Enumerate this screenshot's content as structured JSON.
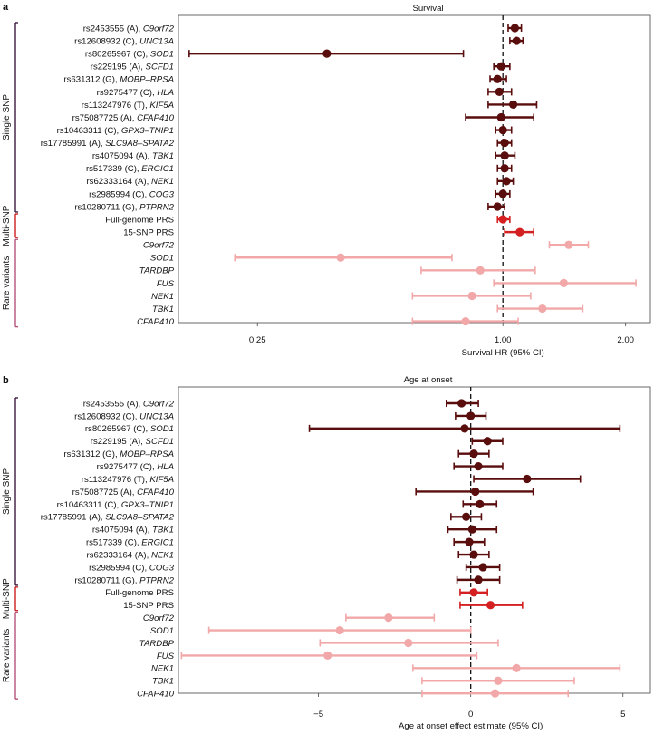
{
  "colors": {
    "single": "#5a0d0d",
    "multi": "#d42020",
    "rare": "#f2a8a8",
    "bracket_single": "#3d1a3e",
    "bracket_multi": "#cc1f1f",
    "bracket_rare": "#b5527a"
  },
  "groups": [
    {
      "key": "single",
      "label": "Single SNP"
    },
    {
      "key": "multi",
      "label": "Multi-SNP"
    },
    {
      "key": "rare",
      "label": "Rare variants"
    }
  ],
  "chart_data": [
    {
      "panel": "a",
      "type": "forest",
      "title": "Survival",
      "xlabel": "Survival HR (95% CI)",
      "scale": "log",
      "xlim": [
        0.16,
        2.3
      ],
      "ticks": [
        {
          "v": 0.25,
          "label": "0.25"
        },
        {
          "v": 1.0,
          "label": "1.00"
        },
        {
          "v": 2.0,
          "label": "2.00"
        }
      ],
      "ref": 1.0,
      "rows": [
        {
          "pre": "rs2453555 (A), ",
          "it": "C9orf72",
          "group": "single",
          "est": 1.07,
          "lo": 1.03,
          "hi": 1.11
        },
        {
          "pre": "rs12608932 (C), ",
          "it": "UNC13A",
          "group": "single",
          "est": 1.08,
          "lo": 1.04,
          "hi": 1.12
        },
        {
          "pre": "rs80265967 (C), ",
          "it": "SOD1",
          "group": "single",
          "est": 0.37,
          "lo": 0.17,
          "hi": 0.8
        },
        {
          "pre": "rs229195 (A), ",
          "it": "SCFD1",
          "group": "single",
          "est": 0.99,
          "lo": 0.95,
          "hi": 1.04
        },
        {
          "pre": "rs631312 (G), ",
          "it": "MOBP–RPSA",
          "group": "single",
          "est": 0.97,
          "lo": 0.93,
          "hi": 1.02
        },
        {
          "pre": "rs9275477 (C), ",
          "it": "HLA",
          "group": "single",
          "est": 0.98,
          "lo": 0.92,
          "hi": 1.05
        },
        {
          "pre": "rs113247976 (T), ",
          "it": "KIF5A",
          "group": "single",
          "est": 1.06,
          "lo": 0.92,
          "hi": 1.21
        },
        {
          "pre": "rs75087725 (A), ",
          "it": "CFAP410",
          "group": "single",
          "est": 0.99,
          "lo": 0.81,
          "hi": 1.19
        },
        {
          "pre": "rs10463311 (C), ",
          "it": "GPX3–TNIP1",
          "group": "single",
          "est": 1.0,
          "lo": 0.96,
          "hi": 1.05
        },
        {
          "pre": "rs17785991 (A), ",
          "it": "SLC9A8–SPATA2",
          "group": "single",
          "est": 1.01,
          "lo": 0.97,
          "hi": 1.05
        },
        {
          "pre": "rs4075094 (A), ",
          "it": "TBK1",
          "group": "single",
          "est": 1.01,
          "lo": 0.96,
          "hi": 1.07
        },
        {
          "pre": "rs517339 (C), ",
          "it": "ERGIC1",
          "group": "single",
          "est": 1.01,
          "lo": 0.97,
          "hi": 1.05
        },
        {
          "pre": "rs62333164 (A), ",
          "it": "NEK1",
          "group": "single",
          "est": 1.02,
          "lo": 0.97,
          "hi": 1.06
        },
        {
          "pre": "rs2985994 (C), ",
          "it": "COG3",
          "group": "single",
          "est": 1.0,
          "lo": 0.96,
          "hi": 1.04
        },
        {
          "pre": "rs10280711 (G), ",
          "it": "PTPRN2",
          "group": "single",
          "est": 0.97,
          "lo": 0.92,
          "hi": 1.01
        },
        {
          "pre": "Full-genome PRS",
          "it": "",
          "group": "multi",
          "est": 1.0,
          "lo": 0.97,
          "hi": 1.04
        },
        {
          "pre": "15-SNP PRS",
          "it": "",
          "group": "multi",
          "est": 1.1,
          "lo": 1.01,
          "hi": 1.19
        },
        {
          "pre": "",
          "it": "C9orf72",
          "group": "rare",
          "est": 1.45,
          "lo": 1.3,
          "hi": 1.62
        },
        {
          "pre": "",
          "it": "SOD1",
          "group": "rare",
          "est": 0.4,
          "lo": 0.22,
          "hi": 0.75
        },
        {
          "pre": "",
          "it": "TARDBP",
          "group": "rare",
          "est": 0.88,
          "lo": 0.63,
          "hi": 1.2
        },
        {
          "pre": "",
          "it": "FUS",
          "group": "rare",
          "est": 1.41,
          "lo": 0.95,
          "hi": 2.12
        },
        {
          "pre": "",
          "it": "NEK1",
          "group": "rare",
          "est": 0.84,
          "lo": 0.6,
          "hi": 1.17
        },
        {
          "pre": "",
          "it": "TBK1",
          "group": "rare",
          "est": 1.25,
          "lo": 0.97,
          "hi": 1.57
        },
        {
          "pre": "",
          "it": "CFAP410",
          "group": "rare",
          "est": 0.81,
          "lo": 0.6,
          "hi": 1.09
        }
      ]
    },
    {
      "panel": "b",
      "type": "forest",
      "title": "Age at onset",
      "xlabel": "Age at onset effect estimate (95% CI)",
      "scale": "linear",
      "xlim": [
        -9.6,
        5.9
      ],
      "ticks": [
        {
          "v": -5,
          "label": "−5"
        },
        {
          "v": 0,
          "label": "0"
        },
        {
          "v": 5,
          "label": "5"
        }
      ],
      "ref": 0,
      "rows": [
        {
          "pre": "rs2453555 (A), ",
          "it": "C9orf72",
          "group": "single",
          "est": -0.3,
          "lo": -0.8,
          "hi": 0.25
        },
        {
          "pre": "rs12608932 (C), ",
          "it": "UNC13A",
          "group": "single",
          "est": 0.0,
          "lo": -0.5,
          "hi": 0.5
        },
        {
          "pre": "rs80265967 (C), ",
          "it": "SOD1",
          "group": "single",
          "est": -0.2,
          "lo": -5.3,
          "hi": 4.9
        },
        {
          "pre": "rs229195 (A), ",
          "it": "SCFD1",
          "group": "single",
          "est": 0.55,
          "lo": 0.05,
          "hi": 1.05
        },
        {
          "pre": "rs631312 (G), ",
          "it": "MOBP–RPSA",
          "group": "single",
          "est": 0.1,
          "lo": -0.4,
          "hi": 0.6
        },
        {
          "pre": "rs9275477 (C), ",
          "it": "HLA",
          "group": "single",
          "est": 0.25,
          "lo": -0.55,
          "hi": 1.05
        },
        {
          "pre": "rs113247976 (T), ",
          "it": "KIF5A",
          "group": "single",
          "est": 1.85,
          "lo": 0.1,
          "hi": 3.6
        },
        {
          "pre": "rs75087725 (A), ",
          "it": "CFAP410",
          "group": "single",
          "est": 0.15,
          "lo": -1.8,
          "hi": 2.05
        },
        {
          "pre": "rs10463311 (C), ",
          "it": "GPX3–TNIP1",
          "group": "single",
          "est": 0.3,
          "lo": -0.25,
          "hi": 0.85
        },
        {
          "pre": "rs17785991 (A), ",
          "it": "SLC9A8–SPATA2",
          "group": "single",
          "est": -0.15,
          "lo": -0.65,
          "hi": 0.35
        },
        {
          "pre": "rs4075094 (A), ",
          "it": "TBK1",
          "group": "single",
          "est": 0.05,
          "lo": -0.75,
          "hi": 0.85
        },
        {
          "pre": "rs517339 (C), ",
          "it": "ERGIC1",
          "group": "single",
          "est": -0.05,
          "lo": -0.55,
          "hi": 0.45
        },
        {
          "pre": "rs62333164 (A), ",
          "it": "NEK1",
          "group": "single",
          "est": 0.1,
          "lo": -0.4,
          "hi": 0.6
        },
        {
          "pre": "rs2985994 (C), ",
          "it": "COG3",
          "group": "single",
          "est": 0.4,
          "lo": -0.15,
          "hi": 0.95
        },
        {
          "pre": "rs10280711 (G), ",
          "it": "PTPRN2",
          "group": "single",
          "est": 0.25,
          "lo": -0.45,
          "hi": 0.95
        },
        {
          "pre": "Full-genome PRS",
          "it": "",
          "group": "multi",
          "est": 0.1,
          "lo": -0.35,
          "hi": 0.55
        },
        {
          "pre": "15-SNP PRS",
          "it": "",
          "group": "multi",
          "est": 0.65,
          "lo": -0.35,
          "hi": 1.7
        },
        {
          "pre": "",
          "it": "C9orf72",
          "group": "rare",
          "est": -2.7,
          "lo": -4.1,
          "hi": -1.2
        },
        {
          "pre": "",
          "it": "SOD1",
          "group": "rare",
          "est": -4.3,
          "lo": -8.6,
          "hi": 0.0
        },
        {
          "pre": "",
          "it": "TARDBP",
          "group": "rare",
          "est": -2.05,
          "lo": -4.95,
          "hi": 0.9
        },
        {
          "pre": "",
          "it": "FUS",
          "group": "rare",
          "est": -4.7,
          "lo": -9.5,
          "hi": 0.2
        },
        {
          "pre": "",
          "it": "NEK1",
          "group": "rare",
          "est": 1.5,
          "lo": -1.9,
          "hi": 4.9
        },
        {
          "pre": "",
          "it": "TBK1",
          "group": "rare",
          "est": 0.9,
          "lo": -1.6,
          "hi": 3.4
        },
        {
          "pre": "",
          "it": "CFAP410",
          "group": "rare",
          "est": 0.8,
          "lo": -1.6,
          "hi": 3.2
        }
      ]
    }
  ]
}
